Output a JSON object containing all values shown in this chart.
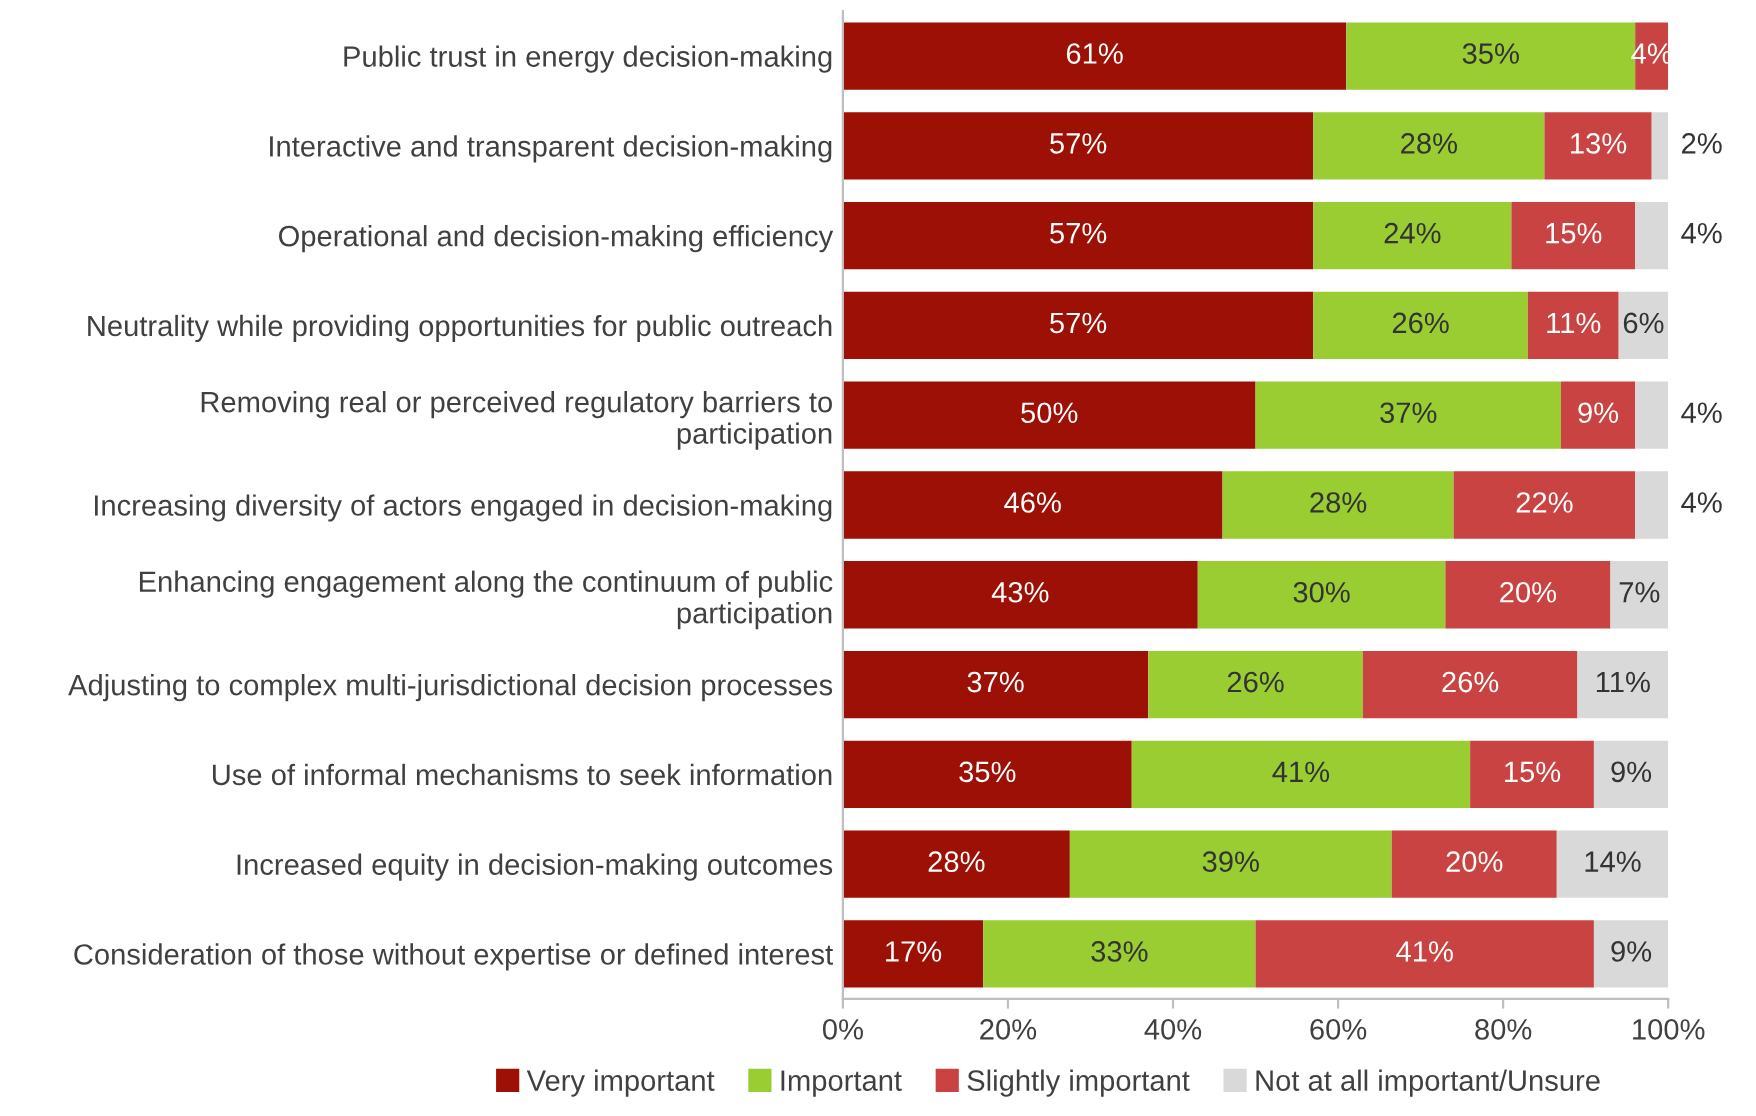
{
  "chart_data": {
    "type": "bar",
    "orientation": "horizontal",
    "stacked": true,
    "categories": [
      "Public trust in energy decision-making",
      "Interactive and transparent decision-making",
      "Operational and decision-making efficiency",
      "Neutrality while providing opportunities for public outreach",
      "Removing real or perceived regulatory barriers to\nparticipation",
      "Increasing diversity of actors engaged in decision-making",
      "Enhancing engagement along the continuum of public\nparticipation",
      "Adjusting to complex multi-jurisdictional decision processes",
      "Use of informal mechanisms to seek information",
      "Increased equity in decision-making outcomes",
      "Consideration of those without expertise or defined interest"
    ],
    "series": [
      {
        "name": "Very important",
        "color": "#9c1006",
        "values": [
          61,
          57,
          57,
          57,
          50,
          46,
          43,
          37,
          35,
          27.5,
          17
        ],
        "value_labels": [
          "61%",
          "57%",
          "57%",
          "57%",
          "50%",
          "46%",
          "43%",
          "37%",
          "35%",
          "28%",
          "17%"
        ]
      },
      {
        "name": "Important",
        "color": "#9acd32",
        "values": [
          35,
          28,
          24,
          26,
          37,
          28,
          30,
          26,
          41,
          39,
          33
        ],
        "value_labels": [
          "35%",
          "28%",
          "24%",
          "26%",
          "37%",
          "28%",
          "30%",
          "26%",
          "41%",
          "39%",
          "33%"
        ]
      },
      {
        "name": "Slightly important",
        "color": "#c94343",
        "values": [
          4,
          13,
          15,
          11,
          9,
          22,
          20,
          26,
          15,
          20,
          41
        ],
        "value_labels": [
          "4%",
          "13%",
          "15%",
          "11%",
          "9%",
          "22%",
          "20%",
          "26%",
          "15%",
          "20%",
          "41%"
        ]
      },
      {
        "name": "Not at all important/Unsure",
        "color": "#d9d9d9",
        "values": [
          0,
          2,
          4,
          6,
          4,
          4,
          7,
          11,
          9,
          13.5,
          9
        ],
        "value_labels": [
          null,
          "2%",
          "4%",
          "6%",
          "4%",
          "4%",
          "7%",
          "11%",
          "9%",
          "14%",
          "9%"
        ]
      }
    ],
    "xlim": [
      0,
      100
    ],
    "xticks": [
      {
        "value": 0,
        "label": "0%"
      },
      {
        "value": 20,
        "label": "20%"
      },
      {
        "value": 40,
        "label": "40%"
      },
      {
        "value": 60,
        "label": "60%"
      },
      {
        "value": 80,
        "label": "80%"
      },
      {
        "value": 100,
        "label": "100%"
      }
    ],
    "grid": false,
    "legend": "bottom"
  }
}
